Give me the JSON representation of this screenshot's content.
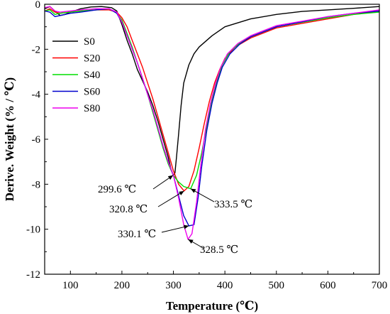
{
  "chart_data": {
    "type": "line",
    "xlabel": "Temperature (℃)",
    "ylabel": "Derive. Weight (% / ℃)",
    "xlim": [
      50,
      700
    ],
    "ylim": [
      -12,
      0
    ],
    "xticks": [
      100,
      200,
      300,
      400,
      500,
      600,
      700
    ],
    "yticks": [
      0,
      -2,
      -4,
      -6,
      -8,
      -10,
      -12
    ],
    "grid": false,
    "legend_position": "top-left",
    "series": [
      {
        "name": "S0",
        "color": "#000000",
        "points": [
          [
            50,
            -0.2
          ],
          [
            60,
            -0.1
          ],
          [
            70,
            -0.3
          ],
          [
            80,
            -0.5
          ],
          [
            90,
            -0.45
          ],
          [
            100,
            -0.35
          ],
          [
            120,
            -0.2
          ],
          [
            140,
            -0.12
          ],
          [
            160,
            -0.1
          ],
          [
            180,
            -0.15
          ],
          [
            190,
            -0.3
          ],
          [
            200,
            -0.9
          ],
          [
            210,
            -1.6
          ],
          [
            220,
            -2.2
          ],
          [
            230,
            -2.9
          ],
          [
            240,
            -3.4
          ],
          [
            250,
            -3.9
          ],
          [
            260,
            -4.5
          ],
          [
            270,
            -5.2
          ],
          [
            280,
            -6.0
          ],
          [
            290,
            -6.8
          ],
          [
            295,
            -7.3
          ],
          [
            299.6,
            -7.6
          ],
          [
            303,
            -7.5
          ],
          [
            306,
            -6.8
          ],
          [
            310,
            -5.8
          ],
          [
            315,
            -4.5
          ],
          [
            320,
            -3.5
          ],
          [
            330,
            -2.7
          ],
          [
            340,
            -2.2
          ],
          [
            350,
            -1.9
          ],
          [
            375,
            -1.4
          ],
          [
            400,
            -1.0
          ],
          [
            450,
            -0.65
          ],
          [
            500,
            -0.45
          ],
          [
            550,
            -0.32
          ],
          [
            600,
            -0.25
          ],
          [
            650,
            -0.18
          ],
          [
            700,
            -0.1
          ]
        ]
      },
      {
        "name": "S20",
        "color": "#ff0000",
        "points": [
          [
            50,
            -0.3
          ],
          [
            60,
            -0.2
          ],
          [
            70,
            -0.35
          ],
          [
            80,
            -0.4
          ],
          [
            100,
            -0.35
          ],
          [
            120,
            -0.3
          ],
          [
            150,
            -0.25
          ],
          [
            175,
            -0.25
          ],
          [
            190,
            -0.35
          ],
          [
            200,
            -0.6
          ],
          [
            210,
            -1.0
          ],
          [
            220,
            -1.6
          ],
          [
            230,
            -2.2
          ],
          [
            240,
            -2.8
          ],
          [
            250,
            -3.5
          ],
          [
            260,
            -4.2
          ],
          [
            270,
            -5.0
          ],
          [
            280,
            -5.8
          ],
          [
            290,
            -6.6
          ],
          [
            300,
            -7.4
          ],
          [
            310,
            -8.0
          ],
          [
            320.8,
            -8.3
          ],
          [
            330,
            -8.1
          ],
          [
            340,
            -7.4
          ],
          [
            350,
            -6.4
          ],
          [
            360,
            -5.3
          ],
          [
            370,
            -4.3
          ],
          [
            380,
            -3.5
          ],
          [
            390,
            -2.9
          ],
          [
            400,
            -2.4
          ],
          [
            420,
            -1.9
          ],
          [
            450,
            -1.5
          ],
          [
            500,
            -1.05
          ],
          [
            550,
            -0.85
          ],
          [
            600,
            -0.65
          ],
          [
            650,
            -0.45
          ],
          [
            700,
            -0.3
          ]
        ]
      },
      {
        "name": "S40",
        "color": "#00dd00",
        "points": [
          [
            50,
            -0.3
          ],
          [
            60,
            -0.25
          ],
          [
            70,
            -0.45
          ],
          [
            80,
            -0.4
          ],
          [
            100,
            -0.35
          ],
          [
            120,
            -0.3
          ],
          [
            150,
            -0.25
          ],
          [
            175,
            -0.2
          ],
          [
            190,
            -0.4
          ],
          [
            200,
            -0.7
          ],
          [
            210,
            -1.3
          ],
          [
            220,
            -1.9
          ],
          [
            230,
            -2.6
          ],
          [
            240,
            -3.3
          ],
          [
            250,
            -4.0
          ],
          [
            260,
            -4.8
          ],
          [
            270,
            -5.6
          ],
          [
            280,
            -6.4
          ],
          [
            290,
            -7.1
          ],
          [
            300,
            -7.6
          ],
          [
            310,
            -7.9
          ],
          [
            320,
            -8.1
          ],
          [
            333.5,
            -8.2
          ],
          [
            345,
            -7.6
          ],
          [
            355,
            -6.6
          ],
          [
            365,
            -5.4
          ],
          [
            375,
            -4.3
          ],
          [
            385,
            -3.4
          ],
          [
            395,
            -2.7
          ],
          [
            410,
            -2.1
          ],
          [
            430,
            -1.7
          ],
          [
            450,
            -1.45
          ],
          [
            500,
            -1.0
          ],
          [
            550,
            -0.8
          ],
          [
            600,
            -0.6
          ],
          [
            650,
            -0.45
          ],
          [
            700,
            -0.35
          ]
        ]
      },
      {
        "name": "S60",
        "color": "#0000cc",
        "points": [
          [
            50,
            -0.3
          ],
          [
            60,
            -0.35
          ],
          [
            70,
            -0.55
          ],
          [
            80,
            -0.5
          ],
          [
            100,
            -0.4
          ],
          [
            120,
            -0.35
          ],
          [
            150,
            -0.25
          ],
          [
            175,
            -0.2
          ],
          [
            190,
            -0.4
          ],
          [
            200,
            -0.8
          ],
          [
            210,
            -1.4
          ],
          [
            220,
            -2.0
          ],
          [
            230,
            -2.6
          ],
          [
            240,
            -3.3
          ],
          [
            250,
            -4.0
          ],
          [
            260,
            -4.7
          ],
          [
            270,
            -5.5
          ],
          [
            280,
            -6.3
          ],
          [
            290,
            -7.0
          ],
          [
            300,
            -7.6
          ],
          [
            310,
            -8.5
          ],
          [
            320,
            -9.4
          ],
          [
            330.1,
            -9.85
          ],
          [
            340,
            -9.8
          ],
          [
            348,
            -8.6
          ],
          [
            355,
            -7.2
          ],
          [
            365,
            -5.6
          ],
          [
            375,
            -4.4
          ],
          [
            385,
            -3.5
          ],
          [
            395,
            -2.8
          ],
          [
            410,
            -2.2
          ],
          [
            430,
            -1.75
          ],
          [
            450,
            -1.45
          ],
          [
            500,
            -1.0
          ],
          [
            550,
            -0.78
          ],
          [
            600,
            -0.55
          ],
          [
            650,
            -0.4
          ],
          [
            700,
            -0.3
          ]
        ]
      },
      {
        "name": "S80",
        "color": "#ee00ee",
        "points": [
          [
            50,
            -0.15
          ],
          [
            60,
            -0.1
          ],
          [
            70,
            -0.3
          ],
          [
            80,
            -0.35
          ],
          [
            100,
            -0.3
          ],
          [
            120,
            -0.25
          ],
          [
            150,
            -0.2
          ],
          [
            175,
            -0.2
          ],
          [
            190,
            -0.35
          ],
          [
            200,
            -0.8
          ],
          [
            210,
            -1.4
          ],
          [
            220,
            -2.0
          ],
          [
            230,
            -2.6
          ],
          [
            240,
            -3.3
          ],
          [
            250,
            -4.0
          ],
          [
            260,
            -4.7
          ],
          [
            270,
            -5.5
          ],
          [
            280,
            -6.3
          ],
          [
            290,
            -7.0
          ],
          [
            300,
            -7.6
          ],
          [
            310,
            -8.6
          ],
          [
            320,
            -9.8
          ],
          [
            328.5,
            -10.45
          ],
          [
            336,
            -10.2
          ],
          [
            345,
            -8.8
          ],
          [
            353,
            -7.2
          ],
          [
            362,
            -5.6
          ],
          [
            372,
            -4.4
          ],
          [
            382,
            -3.5
          ],
          [
            392,
            -2.8
          ],
          [
            405,
            -2.2
          ],
          [
            425,
            -1.75
          ],
          [
            450,
            -1.4
          ],
          [
            500,
            -0.95
          ],
          [
            550,
            -0.75
          ],
          [
            600,
            -0.55
          ],
          [
            650,
            -0.4
          ],
          [
            700,
            -0.25
          ]
        ]
      }
    ],
    "annotations": [
      {
        "text": "299.6 ℃",
        "x": 299.6,
        "y": -7.6
      },
      {
        "text": "320.8 ℃",
        "x": 320.8,
        "y": -8.3
      },
      {
        "text": "333.5 ℃",
        "x": 333.5,
        "y": -8.2
      },
      {
        "text": "330.1 ℃",
        "x": 330.1,
        "y": -9.85
      },
      {
        "text": "328.5 ℃",
        "x": 328.5,
        "y": -10.45
      }
    ]
  }
}
